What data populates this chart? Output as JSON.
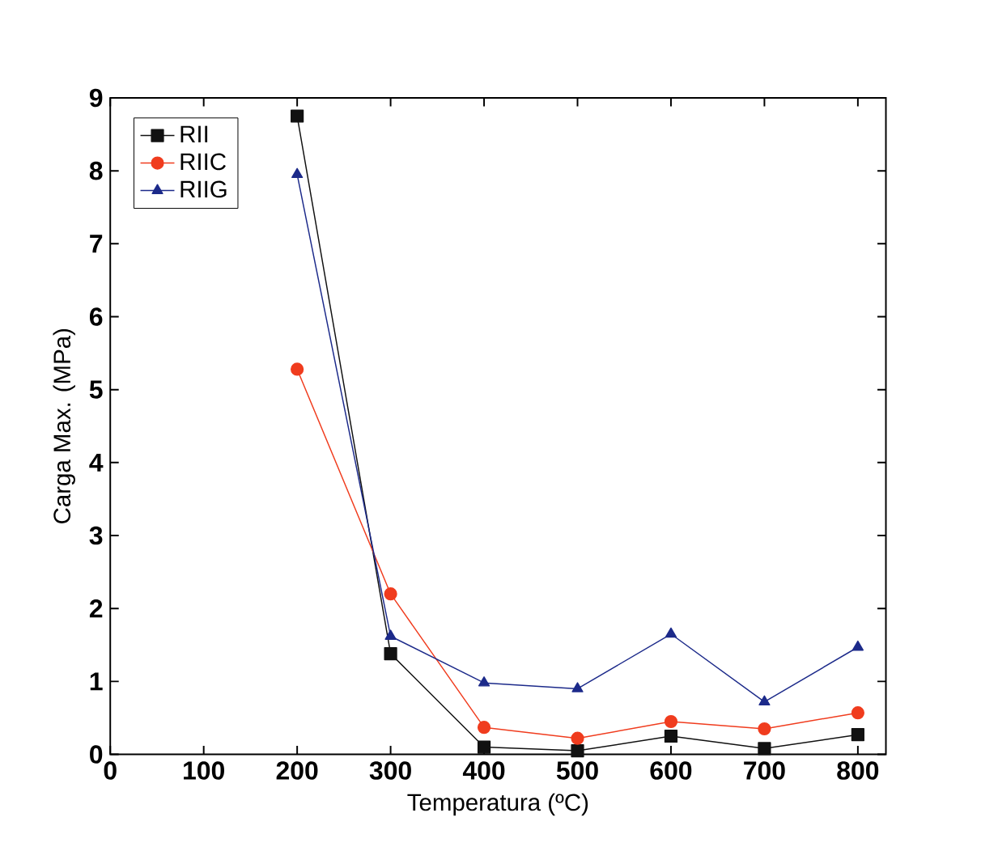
{
  "chart_data": {
    "type": "line",
    "xlabel": "Temperatura (ºC)",
    "ylabel": "Carga Max. (MPa)",
    "x": [
      200,
      300,
      400,
      500,
      600,
      700,
      800
    ],
    "series": [
      {
        "name": "RII",
        "color": "#111111",
        "marker": "square",
        "values": [
          8.75,
          1.38,
          0.1,
          0.05,
          0.25,
          0.08,
          0.27
        ]
      },
      {
        "name": "RIIC",
        "color": "#f03c1e",
        "marker": "circle",
        "values": [
          5.28,
          2.2,
          0.37,
          0.22,
          0.45,
          0.35,
          0.57
        ]
      },
      {
        "name": "RIIG",
        "color": "#1c2a8a",
        "marker": "triangle",
        "values": [
          7.95,
          1.62,
          0.98,
          0.9,
          1.65,
          0.72,
          1.47
        ]
      }
    ],
    "xlim": [
      0,
      830
    ],
    "ylim": [
      0,
      9
    ],
    "xticks": [
      0,
      100,
      200,
      300,
      400,
      500,
      600,
      700,
      800
    ],
    "yticks": [
      0,
      1,
      2,
      3,
      4,
      5,
      6,
      7,
      8,
      9
    ],
    "legend": "top left",
    "grid": false
  }
}
